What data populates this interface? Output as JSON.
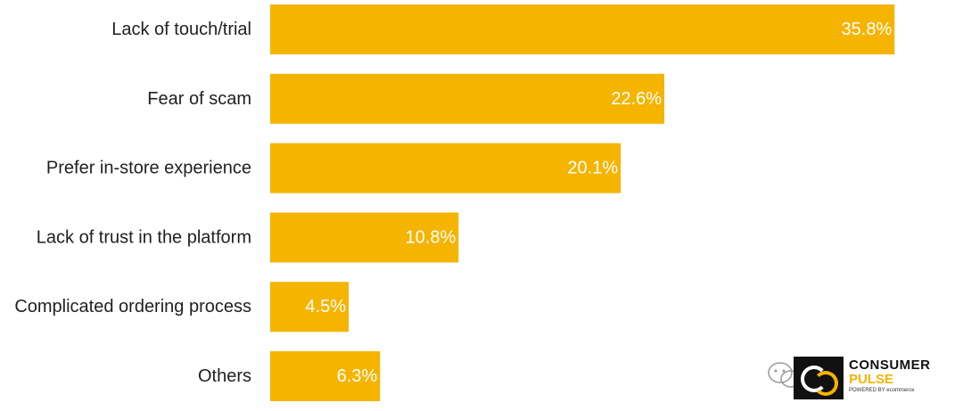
{
  "chart_data": {
    "type": "bar",
    "orientation": "horizontal",
    "categories": [
      "Lack of touch/trial",
      "Fear of scam",
      "Prefer in-store experience",
      "Lack of trust in the platform",
      "Complicated ordering process",
      "Others"
    ],
    "values": [
      35.8,
      22.6,
      20.1,
      10.8,
      4.5,
      6.3
    ],
    "value_labels": [
      "35.8%",
      "22.6%",
      "20.1%",
      "10.8%",
      "4.5%",
      "6.3%"
    ],
    "title": "",
    "xlabel": "",
    "ylabel": "",
    "grid": false,
    "legend": "none",
    "bar_color": "#F5B400",
    "value_label_color": "#FFFFFF",
    "category_label_color": "#1F1F1F"
  },
  "watermark": {
    "line1": "CONSUMER",
    "line2": "PULSE",
    "line3": "POWERED BY ecommerce",
    "wechat_icon": "wechat-icon"
  }
}
